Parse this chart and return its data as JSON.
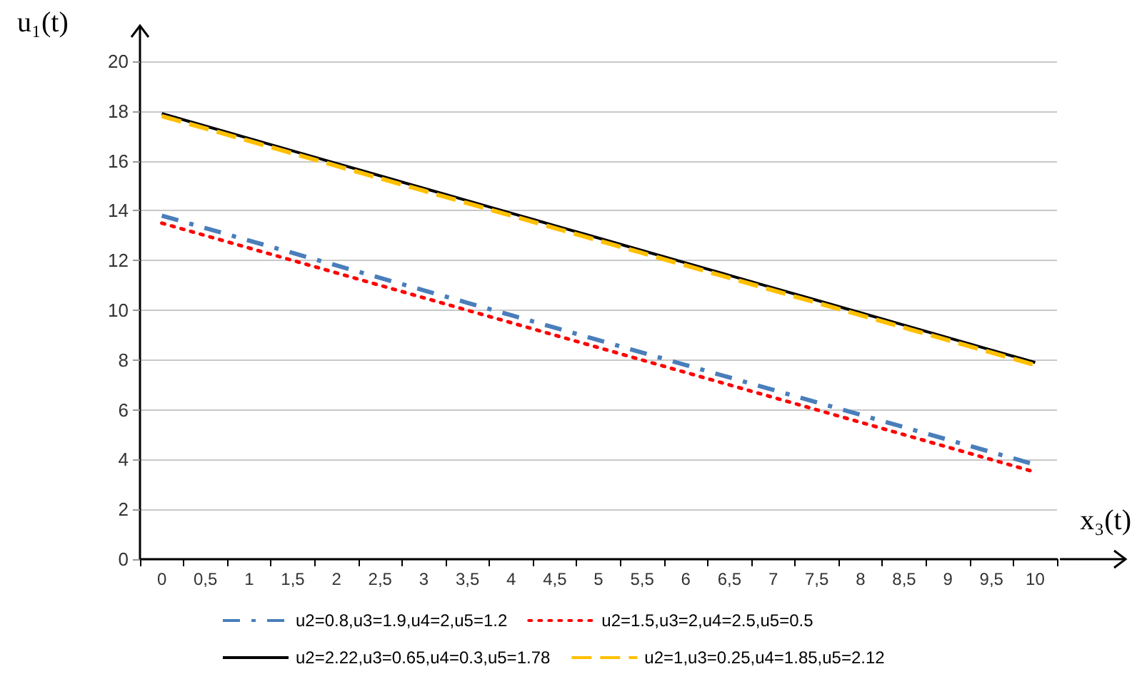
{
  "chart_data": {
    "type": "line",
    "xlabel": "x₃(t)",
    "ylabel": "u₁(t)",
    "categories": [
      "0",
      "0,5",
      "1",
      "1,5",
      "2",
      "2,5",
      "3",
      "3,5",
      "4",
      "4,5",
      "5",
      "5,5",
      "6",
      "6,5",
      "7",
      "7,5",
      "8",
      "8,5",
      "9",
      "9,5",
      "10"
    ],
    "series": [
      {
        "name": "u2=0.8,u3=1.9,u4=2,u5=1.2",
        "color": "#4a7ebb",
        "line_style": "dashdot",
        "values": [
          13.8,
          13.3,
          12.8,
          12.3,
          11.8,
          11.3,
          10.8,
          10.3,
          9.8,
          9.3,
          8.8,
          8.3,
          7.8,
          7.3,
          6.8,
          6.3,
          5.8,
          5.3,
          4.8,
          4.3,
          3.8
        ]
      },
      {
        "name": "u2=1.5,u3=2,u4=2.5,u5=0.5",
        "color": "#ff0000",
        "line_style": "dotted",
        "values": [
          13.5,
          13.0,
          12.5,
          12.0,
          11.5,
          11.0,
          10.5,
          10.0,
          9.5,
          9.0,
          8.5,
          8.0,
          7.5,
          7.0,
          6.5,
          6.0,
          5.5,
          5.0,
          4.5,
          4.0,
          3.5
        ]
      },
      {
        "name": "u2=2.22,u3=0.65,u4=0.3,u5=1.78",
        "color": "#000000",
        "line_style": "solid",
        "values": [
          17.9,
          17.4,
          16.9,
          16.4,
          15.9,
          15.4,
          14.9,
          14.4,
          13.9,
          13.4,
          12.9,
          12.4,
          11.9,
          11.4,
          10.9,
          10.4,
          9.9,
          9.4,
          8.9,
          8.4,
          7.9
        ]
      },
      {
        "name": "u2=1,u3=0.25,u4=1.85,u5=2.12",
        "color": "#ffc000",
        "line_style": "dashed",
        "values": [
          17.8,
          17.3,
          16.8,
          16.3,
          15.8,
          15.3,
          14.8,
          14.3,
          13.8,
          13.3,
          12.8,
          12.3,
          11.8,
          11.3,
          10.8,
          10.3,
          9.8,
          9.3,
          8.8,
          8.3,
          7.8
        ]
      }
    ],
    "ylim": [
      0,
      20
    ],
    "yticks": [
      0,
      2,
      4,
      6,
      8,
      10,
      12,
      14,
      16,
      18,
      20
    ],
    "grid": "y",
    "legend": "bottom",
    "marker": "none"
  }
}
